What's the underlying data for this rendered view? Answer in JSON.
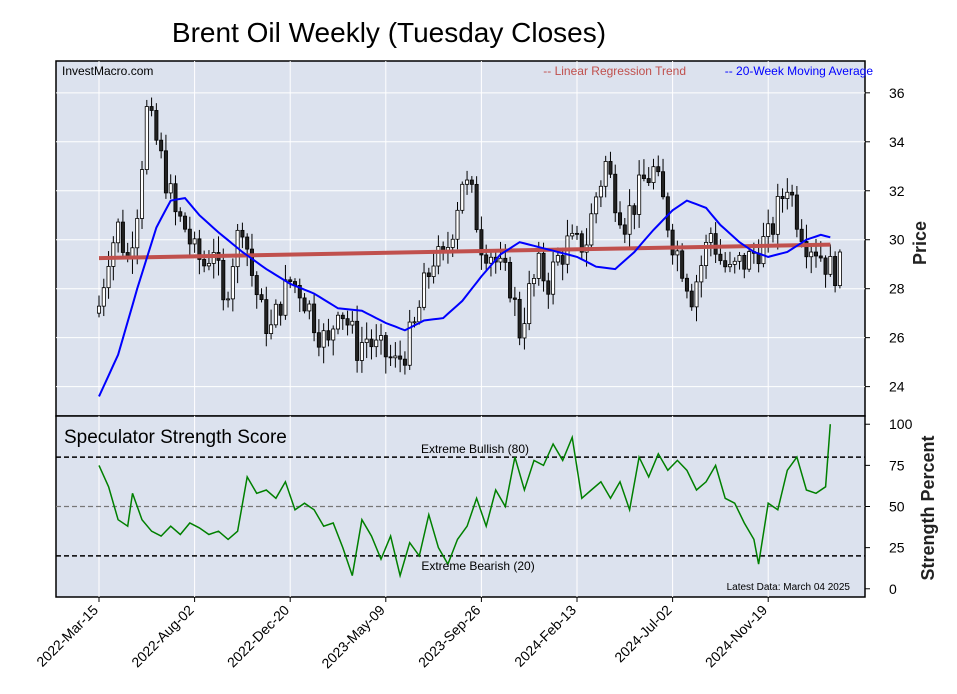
{
  "chart_data": {
    "type": "candlestick",
    "title": "Brent Oil Weekly (Tuesday Closes)",
    "source": "InvestMacro.com",
    "latest_data": "Latest Data: March 04 2025",
    "x_tick_labels": [
      "2022-Mar-15",
      "2022-Aug-02",
      "2022-Dec-20",
      "2023-May-09",
      "2023-Sep-26",
      "2024-Feb-13",
      "2024-Jul-02",
      "2024-Nov-19"
    ],
    "x_tick_index": [
      0,
      20,
      40,
      60,
      80,
      100,
      120,
      140
    ],
    "weeks_count": 156,
    "legend": {
      "regression": "-- Linear Regression Trend",
      "moving_average": "-- 20-Week Moving Average"
    },
    "colors": {
      "regression": "#c0504d",
      "moving_average": "#0000ff",
      "strength_line": "#008000",
      "panel_bg": "#dce2ee"
    },
    "price_panel": {
      "ylabel": "Price",
      "yticks": [
        24,
        26,
        28,
        30,
        32,
        34,
        36
      ],
      "ylim": [
        22.8,
        37.3
      ],
      "regression": {
        "start": 29.25,
        "end": 29.8
      },
      "ma_anchors": [
        [
          0,
          23.6
        ],
        [
          4,
          25.3
        ],
        [
          8,
          28.0
        ],
        [
          12,
          30.5
        ],
        [
          15,
          31.6
        ],
        [
          18,
          31.7
        ],
        [
          21,
          31.0
        ],
        [
          25,
          30.3
        ],
        [
          30,
          29.5
        ],
        [
          35,
          28.8
        ],
        [
          40,
          28.2
        ],
        [
          45,
          27.8
        ],
        [
          50,
          27.2
        ],
        [
          55,
          27.1
        ],
        [
          60,
          26.6
        ],
        [
          64,
          26.3
        ],
        [
          68,
          26.7
        ],
        [
          72,
          26.8
        ],
        [
          76,
          27.5
        ],
        [
          80,
          28.5
        ],
        [
          84,
          29.4
        ],
        [
          88,
          29.9
        ],
        [
          92,
          29.7
        ],
        [
          96,
          29.5
        ],
        [
          100,
          29.3
        ],
        [
          104,
          28.9
        ],
        [
          108,
          28.8
        ],
        [
          112,
          29.5
        ],
        [
          116,
          30.4
        ],
        [
          120,
          31.2
        ],
        [
          123,
          31.6
        ],
        [
          127,
          31.3
        ],
        [
          130,
          30.6
        ],
        [
          134,
          29.9
        ],
        [
          137,
          29.5
        ],
        [
          140,
          29.3
        ],
        [
          144,
          29.5
        ],
        [
          148,
          30.0
        ],
        [
          151,
          30.2
        ],
        [
          153,
          30.1
        ]
      ],
      "close_anchors": [
        [
          0,
          27.3
        ],
        [
          2,
          29.5
        ],
        [
          4,
          30.5
        ],
        [
          6,
          29.2
        ],
        [
          8,
          31.4
        ],
        [
          10,
          35.2
        ],
        [
          12,
          34.0
        ],
        [
          14,
          32.5
        ],
        [
          16,
          31.0
        ],
        [
          18,
          30.5
        ],
        [
          20,
          29.4
        ],
        [
          22,
          29.0
        ],
        [
          24,
          29.8
        ],
        [
          26,
          27.2
        ],
        [
          28,
          29.3
        ],
        [
          30,
          30.8
        ],
        [
          32,
          28.6
        ],
        [
          34,
          27.0
        ],
        [
          36,
          26.3
        ],
        [
          38,
          27.5
        ],
        [
          40,
          28.3
        ],
        [
          42,
          28.0
        ],
        [
          44,
          27.2
        ],
        [
          46,
          26.3
        ],
        [
          48,
          25.6
        ],
        [
          50,
          27.5
        ],
        [
          52,
          26.6
        ],
        [
          54,
          25.6
        ],
        [
          56,
          26.0
        ],
        [
          58,
          25.5
        ],
        [
          60,
          25.3
        ],
        [
          62,
          24.9
        ],
        [
          64,
          25.5
        ],
        [
          66,
          26.4
        ],
        [
          68,
          28.0
        ],
        [
          70,
          29.3
        ],
        [
          72,
          29.0
        ],
        [
          74,
          30.6
        ],
        [
          76,
          32.5
        ],
        [
          78,
          31.7
        ],
        [
          80,
          29.9
        ],
        [
          82,
          29.5
        ],
        [
          84,
          28.7
        ],
        [
          86,
          28.2
        ],
        [
          88,
          26.3
        ],
        [
          90,
          27.8
        ],
        [
          92,
          28.8
        ],
        [
          94,
          28.3
        ],
        [
          96,
          29.2
        ],
        [
          98,
          29.8
        ],
        [
          100,
          29.7
        ],
        [
          102,
          30.0
        ],
        [
          104,
          31.8
        ],
        [
          106,
          33.1
        ],
        [
          108,
          31.8
        ],
        [
          110,
          30.8
        ],
        [
          112,
          31.5
        ],
        [
          114,
          32.4
        ],
        [
          116,
          32.8
        ],
        [
          118,
          31.5
        ],
        [
          120,
          30.0
        ],
        [
          122,
          29.0
        ],
        [
          124,
          27.8
        ],
        [
          126,
          29.0
        ],
        [
          128,
          30.3
        ],
        [
          130,
          29.2
        ],
        [
          132,
          28.6
        ],
        [
          134,
          29.0
        ],
        [
          136,
          29.2
        ],
        [
          138,
          29.7
        ],
        [
          140,
          30.0
        ],
        [
          142,
          31.2
        ],
        [
          144,
          32.4
        ],
        [
          146,
          31.0
        ],
        [
          148,
          30.0
        ],
        [
          150,
          29.7
        ],
        [
          153,
          28.8
        ]
      ]
    },
    "strength_panel": {
      "title": "Speculator Strength Score",
      "ylabel": "Strength Percent",
      "yticks": [
        0,
        25,
        50,
        75,
        100
      ],
      "ylim": [
        -5,
        105
      ],
      "extreme_bullish": 80,
      "extreme_bullish_label": "Extreme Bullish (80)",
      "extreme_bearish": 20,
      "extreme_bearish_label": "Extreme Bearish (20)",
      "midline": 50,
      "anchors": [
        [
          0,
          75
        ],
        [
          2,
          62
        ],
        [
          4,
          42
        ],
        [
          6,
          38
        ],
        [
          7,
          58
        ],
        [
          9,
          42
        ],
        [
          11,
          35
        ],
        [
          13,
          32
        ],
        [
          15,
          38
        ],
        [
          17,
          33
        ],
        [
          19,
          40
        ],
        [
          21,
          37
        ],
        [
          23,
          33
        ],
        [
          25,
          35
        ],
        [
          27,
          30
        ],
        [
          29,
          35
        ],
        [
          31,
          68
        ],
        [
          33,
          58
        ],
        [
          35,
          60
        ],
        [
          37,
          55
        ],
        [
          39,
          65
        ],
        [
          41,
          48
        ],
        [
          43,
          52
        ],
        [
          45,
          48
        ],
        [
          47,
          38
        ],
        [
          49,
          40
        ],
        [
          51,
          25
        ],
        [
          53,
          8
        ],
        [
          55,
          42
        ],
        [
          57,
          32
        ],
        [
          59,
          18
        ],
        [
          61,
          32
        ],
        [
          63,
          8
        ],
        [
          65,
          28
        ],
        [
          67,
          20
        ],
        [
          69,
          45
        ],
        [
          71,
          25
        ],
        [
          73,
          15
        ],
        [
          75,
          30
        ],
        [
          77,
          38
        ],
        [
          79,
          55
        ],
        [
          81,
          38
        ],
        [
          83,
          60
        ],
        [
          85,
          50
        ],
        [
          87,
          80
        ],
        [
          89,
          60
        ],
        [
          91,
          78
        ],
        [
          93,
          75
        ],
        [
          95,
          88
        ],
        [
          97,
          78
        ],
        [
          99,
          92
        ],
        [
          101,
          55
        ],
        [
          103,
          60
        ],
        [
          105,
          65
        ],
        [
          107,
          55
        ],
        [
          109,
          65
        ],
        [
          111,
          48
        ],
        [
          113,
          80
        ],
        [
          115,
          68
        ],
        [
          117,
          82
        ],
        [
          119,
          72
        ],
        [
          121,
          78
        ],
        [
          123,
          72
        ],
        [
          125,
          60
        ],
        [
          127,
          65
        ],
        [
          129,
          75
        ],
        [
          131,
          55
        ],
        [
          133,
          52
        ],
        [
          135,
          40
        ],
        [
          137,
          30
        ],
        [
          138,
          15
        ],
        [
          140,
          52
        ],
        [
          142,
          48
        ],
        [
          144,
          72
        ],
        [
          146,
          80
        ],
        [
          148,
          60
        ],
        [
          150,
          58
        ],
        [
          152,
          62
        ],
        [
          153,
          100
        ]
      ]
    }
  }
}
